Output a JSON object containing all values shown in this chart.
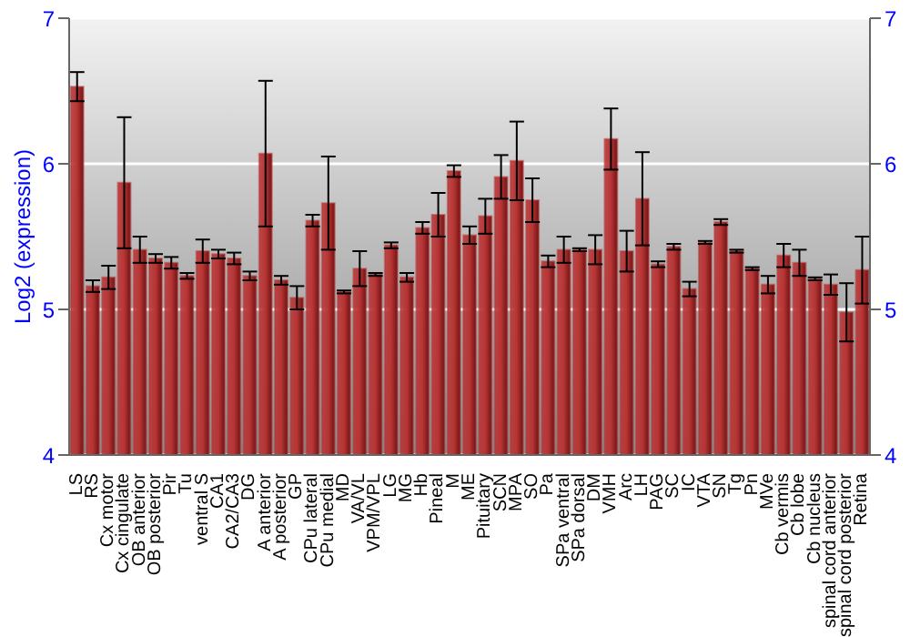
{
  "chart_data": {
    "type": "bar",
    "ylabel": "Log2 (expression)",
    "categories": [
      "LS",
      "RS",
      "Cx motor",
      "Cx cingulate",
      "OB anterior",
      "OB posterior",
      "Pir",
      "Tu",
      "ventral S",
      "CA1",
      "CA2/CA3",
      "DG",
      "A anterior",
      "A posterior",
      "GP",
      "CPu lateral",
      "CPu medial",
      "MD",
      "VA/VL",
      "VPM/VPL",
      "LG",
      "MG",
      "Hb",
      "Pineal",
      "M",
      "ME",
      "Pituitary",
      "SCN",
      "MPA",
      "SO",
      "Pa",
      "SPa ventral",
      "SPa dorsal",
      "DM",
      "VMH",
      "Arc",
      "LH",
      "PAG",
      "SC",
      "IC",
      "VTA",
      "SN",
      "Tg",
      "Pn",
      "MVe",
      "Cb vermis",
      "Cb lobe",
      "Cb nucleus",
      "spinal cord anterior",
      "spinal cord posterior",
      "Retina"
    ],
    "values": [
      6.53,
      5.16,
      5.22,
      5.87,
      5.41,
      5.35,
      5.32,
      5.23,
      5.4,
      5.38,
      5.35,
      5.23,
      6.07,
      5.2,
      5.08,
      5.61,
      5.73,
      5.12,
      5.28,
      5.24,
      5.44,
      5.22,
      5.56,
      5.65,
      5.95,
      5.51,
      5.64,
      5.91,
      6.02,
      5.75,
      5.33,
      5.41,
      5.41,
      5.41,
      6.17,
      5.4,
      5.76,
      5.31,
      5.43,
      5.14,
      5.46,
      5.6,
      5.4,
      5.28,
      5.17,
      5.37,
      5.32,
      5.21,
      5.17,
      4.98,
      5.27
    ],
    "errors": [
      0.1,
      0.04,
      0.08,
      0.45,
      0.09,
      0.03,
      0.04,
      0.02,
      0.08,
      0.03,
      0.04,
      0.03,
      0.5,
      0.03,
      0.08,
      0.04,
      0.32,
      0.01,
      0.12,
      0.01,
      0.02,
      0.03,
      0.04,
      0.15,
      0.04,
      0.06,
      0.12,
      0.15,
      0.27,
      0.15,
      0.04,
      0.09,
      0.01,
      0.1,
      0.21,
      0.14,
      0.32,
      0.02,
      0.02,
      0.05,
      0.01,
      0.02,
      0.01,
      0.01,
      0.06,
      0.08,
      0.09,
      0.01,
      0.07,
      0.2,
      0.23
    ],
    "color": "#b83434",
    "ylim": [
      4,
      7
    ],
    "yticks": [
      4,
      5,
      6,
      7
    ],
    "y2lim": [
      4,
      7
    ],
    "y2ticks": [
      4,
      5,
      6,
      7
    ],
    "grid": "y"
  }
}
